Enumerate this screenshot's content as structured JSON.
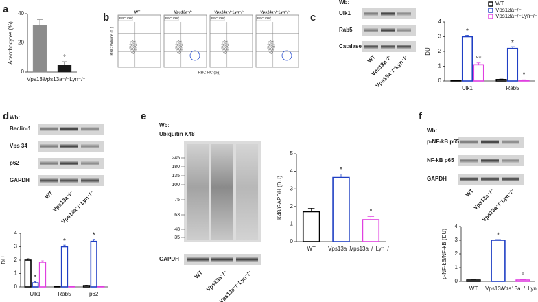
{
  "figure": {
    "panels": [
      "a",
      "b",
      "c",
      "d",
      "e",
      "f"
    ],
    "flow": {
      "titles": [
        "WT",
        "Vps13a⁻/⁻",
        "Vps13a⁻/⁻Lyn⁻/⁻",
        "Vps13a⁻/⁻Lyn⁺/⁻"
      ],
      "gate_label": "RBC VHC",
      "ylabel": "RBC Volume (fL)",
      "xlabel": "RBC HC (pg)"
    },
    "blot_c": {
      "header": "Wb:",
      "rows": [
        "Ulk1",
        "Rab5",
        "Catalase"
      ],
      "lanes": [
        "WT",
        "Vps13a⁻/⁻",
        "Vps13a⁻/⁻Lyn⁻/⁻"
      ]
    },
    "blot_d": {
      "header": "Wb:",
      "rows": [
        "Beclin-1",
        "Vps 34",
        "p62",
        "GAPDH"
      ],
      "lanes": [
        "WT",
        "Vps13a⁻/⁻",
        "Vps13a⁻/⁻Lyn⁻/⁻"
      ]
    },
    "blot_e": {
      "header": "Wb:",
      "antibody": "Ubiquitin K48",
      "markers": [
        "245",
        "180",
        "135",
        "100",
        "75",
        "63",
        "48",
        "35"
      ],
      "loading": "GAPDH",
      "lanes": [
        "WT",
        "Vps13a⁻/⁻",
        "Vps13a⁻/⁻Lyn⁻/⁻"
      ]
    },
    "blot_f": {
      "header": "Wb:",
      "rows": [
        "p-NF-kB p65",
        "NF-kB p65",
        "GAPDH"
      ],
      "lanes": [
        "WT",
        "Vps13a⁻/⁻",
        "Vps13a⁻/⁻Lyn⁻/⁻"
      ]
    }
  },
  "chart_data": [
    {
      "type": "bar",
      "ylabel": "Acanthocytes (%)",
      "categories": [
        "Vps13a⁻/⁻",
        "Vps13a⁻/⁻Lyn⁻/⁻"
      ],
      "values": [
        32,
        5
      ],
      "errors": [
        4,
        2
      ],
      "colors": [
        "#8c8c8c",
        "#1a1a1a"
      ],
      "bar_style": "filled",
      "annotations": [
        null,
        "°"
      ],
      "ylim": [
        0,
        40
      ],
      "yticks": [
        0,
        20,
        40
      ]
    },
    {
      "type": "grouped_bar",
      "ylabel": "DU",
      "categories": [
        "Ulk1",
        "Rab5"
      ],
      "legend": "top-right",
      "ylim": [
        0,
        4
      ],
      "yticks": [
        0,
        1,
        2,
        3,
        4
      ],
      "series": [
        {
          "name": "WT",
          "color": "#000000",
          "values": [
            0.05,
            0.1
          ],
          "errors": [
            0.02,
            0.03
          ],
          "annotations": [
            null,
            null
          ]
        },
        {
          "name": "Vps13a⁻/⁻",
          "color": "#1f3fc4",
          "values": [
            3.0,
            2.2
          ],
          "errors": [
            0.1,
            0.12
          ],
          "annotations": [
            "*",
            "*"
          ]
        },
        {
          "name": "Vps13a⁻/⁻Lyn⁻/⁻",
          "color": "#e040e0",
          "values": [
            1.1,
            0.05
          ],
          "errors": [
            0.12,
            0.03
          ],
          "annotations": [
            "°*",
            "°"
          ]
        }
      ]
    },
    {
      "type": "grouped_bar",
      "ylabel": "DU",
      "categories": [
        "Ulk1",
        "Rab5",
        "p62"
      ],
      "legend": null,
      "ylim": [
        0,
        4
      ],
      "yticks": [
        0,
        1,
        2,
        3,
        4
      ],
      "series": [
        {
          "name": "WT",
          "color": "#000000",
          "values": [
            2.0,
            0.05,
            0.1
          ],
          "errors": [
            0.1,
            0.02,
            0.03
          ],
          "annotations": [
            null,
            null,
            null
          ]
        },
        {
          "name": "Vps13a⁻/⁻",
          "color": "#1f3fc4",
          "values": [
            0.3,
            3.0,
            3.4
          ],
          "errors": [
            0.08,
            0.12,
            0.15
          ],
          "annotations": [
            "*",
            "*",
            "*"
          ]
        },
        {
          "name": "Vps13a⁻/⁻Lyn⁻/⁻",
          "color": "#e040e0",
          "values": [
            1.85,
            0.05,
            0.05
          ],
          "errors": [
            0.1,
            0.02,
            0.02
          ],
          "annotations": [
            null,
            null,
            null
          ]
        }
      ]
    },
    {
      "type": "bar",
      "ylabel": "K48/GAPDH (DU)",
      "categories": [
        "WT",
        "Vps13a⁻/⁻",
        "Vps13a⁻/⁻Lyn⁻/⁻"
      ],
      "values": [
        1.7,
        3.65,
        1.25
      ],
      "errors": [
        0.2,
        0.2,
        0.18
      ],
      "colors": [
        "#000000",
        "#1f3fc4",
        "#e040e0"
      ],
      "bar_style": "outline",
      "annotations": [
        null,
        "*",
        "°"
      ],
      "ylim": [
        0,
        5
      ],
      "yticks": [
        0,
        1,
        2,
        3,
        4,
        5
      ]
    },
    {
      "type": "bar",
      "ylabel": "p-NF-kB/NF-kB (DU)",
      "categories": [
        "WT",
        "Vps13a⁻/⁻",
        "Vps13a⁻/⁻Lyn⁻/⁻"
      ],
      "values": [
        0.1,
        3.0,
        0.1
      ],
      "errors": [
        0.02,
        0.05,
        0.03
      ],
      "colors": [
        "#000000",
        "#1f3fc4",
        "#e040e0"
      ],
      "bar_style": "outline",
      "annotations": [
        null,
        "*",
        "°"
      ],
      "ylim": [
        0,
        4
      ],
      "yticks": [
        0,
        1,
        2,
        3,
        4
      ]
    }
  ]
}
